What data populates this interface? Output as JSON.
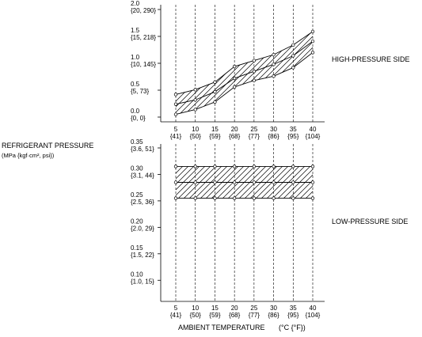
{
  "labels": {
    "y_title": "REFRIGERANT PRESSURE",
    "y_unit": "(MPa {kgf·cm², psi})",
    "x_title": "AMBIENT TEMPERATURE",
    "x_unit": "(°C {°F})",
    "high_side": "HIGH-PRESSURE SIDE",
    "low_side": "LOW-PRESSURE SIDE"
  },
  "chart_data": [
    {
      "type": "area",
      "name": "high",
      "x": [
        5,
        10,
        15,
        20,
        25,
        30,
        35,
        40
      ],
      "x_ticks": [
        {
          "top": "5",
          "bottom": "{41}"
        },
        {
          "top": "10",
          "bottom": "{50}"
        },
        {
          "top": "15",
          "bottom": "{59}"
        },
        {
          "top": "20",
          "bottom": "{68}"
        },
        {
          "top": "25",
          "bottom": "{77}"
        },
        {
          "top": "30",
          "bottom": "{86}"
        },
        {
          "top": "35",
          "bottom": "{95}"
        },
        {
          "top": "40",
          "bottom": "{104}"
        }
      ],
      "ylim": [
        0,
        2.0
      ],
      "y_ticks": [
        {
          "value": 2.0,
          "top": "2.0",
          "bottom": "{20, 290}"
        },
        {
          "value": 1.5,
          "top": "1.5",
          "bottom": "{15, 218}"
        },
        {
          "value": 1.0,
          "top": "1.0",
          "bottom": "{10, 145}"
        },
        {
          "value": 0.5,
          "top": "0.5",
          "bottom": "{5, 73}"
        },
        {
          "value": 0.0,
          "top": "0.0",
          "bottom": "{0, 0}"
        }
      ],
      "upper": [
        0.42,
        0.51,
        0.65,
        0.94,
        1.05,
        1.16,
        1.34,
        1.59
      ],
      "middle": [
        0.24,
        0.32,
        0.47,
        0.72,
        0.85,
        0.98,
        1.14,
        1.41
      ],
      "lower": [
        0.05,
        0.14,
        0.28,
        0.56,
        0.68,
        0.76,
        0.92,
        1.2
      ]
    },
    {
      "type": "area",
      "name": "low",
      "x": [
        5,
        10,
        15,
        20,
        25,
        30,
        35,
        40
      ],
      "x_ticks": [
        {
          "top": "5",
          "bottom": "{41}"
        },
        {
          "top": "10",
          "bottom": "{50}"
        },
        {
          "top": "15",
          "bottom": "{59}"
        },
        {
          "top": "20",
          "bottom": "{68}"
        },
        {
          "top": "25",
          "bottom": "{77}"
        },
        {
          "top": "30",
          "bottom": "{86}"
        },
        {
          "top": "35",
          "bottom": "{95}"
        },
        {
          "top": "40",
          "bottom": "{104}"
        }
      ],
      "ylim": [
        0.075,
        0.35
      ],
      "y_ticks": [
        {
          "value": 0.35,
          "top": "0.35",
          "bottom": "{3.6, 51}"
        },
        {
          "value": 0.3,
          "top": "0.30",
          "bottom": "{3.1, 44}"
        },
        {
          "value": 0.25,
          "top": "0.25",
          "bottom": "{2.5, 36}"
        },
        {
          "value": 0.2,
          "top": "0.20",
          "bottom": "{2.0, 29}"
        },
        {
          "value": 0.15,
          "top": "0.15",
          "bottom": "{1.5, 22}"
        },
        {
          "value": 0.1,
          "top": "0.10",
          "bottom": "{1.0, 15}"
        }
      ],
      "upper": [
        0.315,
        0.315,
        0.315,
        0.315,
        0.315,
        0.315,
        0.315,
        0.315
      ],
      "middle": [
        0.285,
        0.285,
        0.285,
        0.285,
        0.285,
        0.285,
        0.285,
        0.285
      ],
      "lower": [
        0.255,
        0.255,
        0.255,
        0.255,
        0.255,
        0.255,
        0.255,
        0.255
      ]
    }
  ]
}
